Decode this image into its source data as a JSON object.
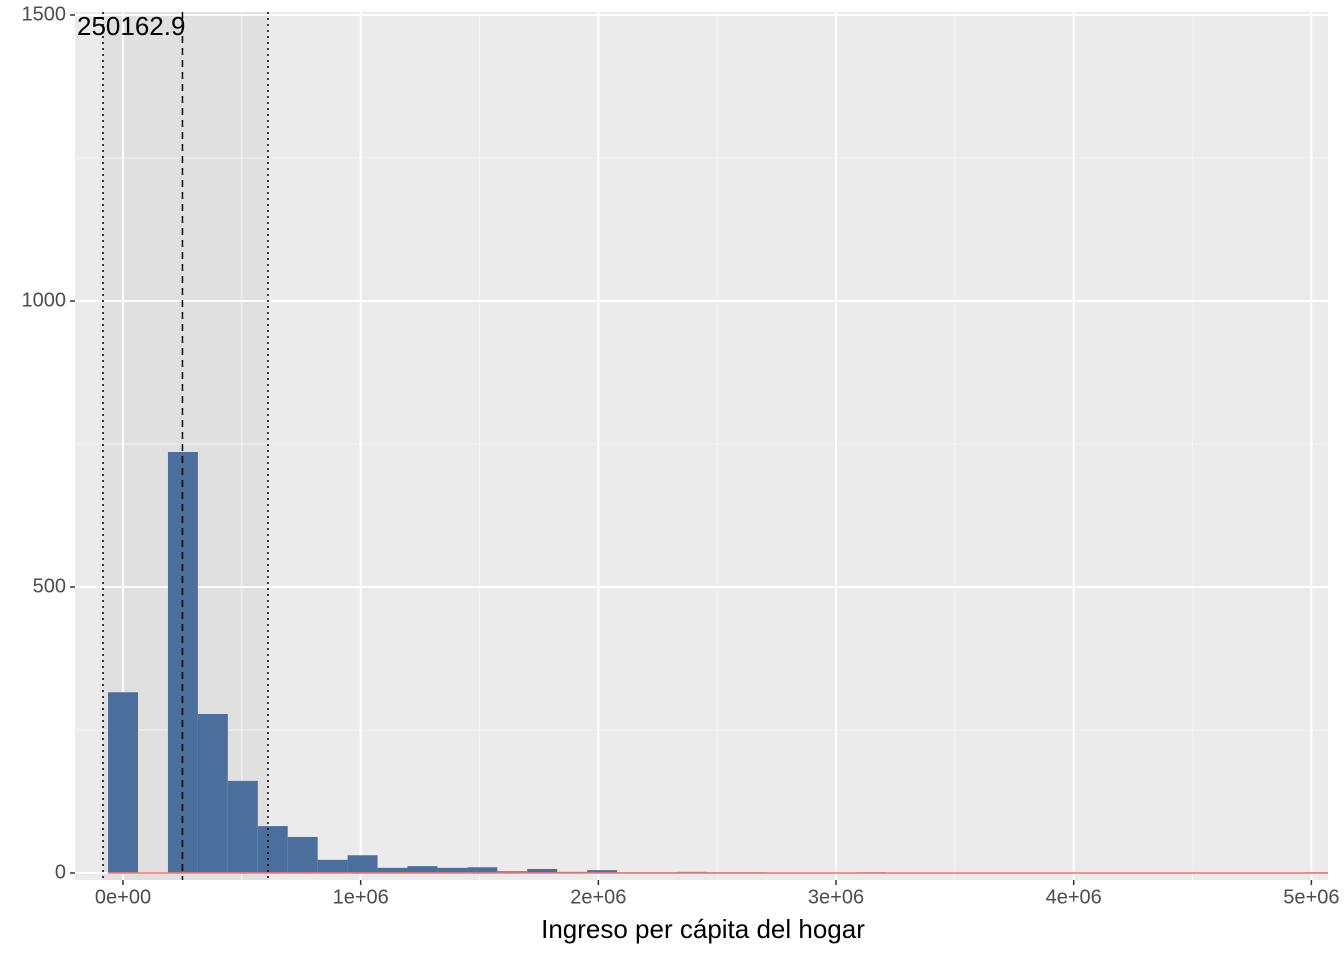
{
  "chart_data": {
    "type": "histogram",
    "xlabel": "Ingreso per cápita del hogar",
    "bins": [
      -63000,
      63000,
      189000,
      315000,
      441000,
      567000,
      693000,
      819000,
      945000,
      1071000,
      1197000,
      1323000,
      1449000,
      1575000,
      1701000,
      1827000,
      1953000,
      2079000,
      2205000,
      2331000,
      2457000,
      2583000,
      2709000,
      2835000,
      2961000,
      3087000,
      3213000,
      3339000,
      3465000,
      3591000,
      3717000,
      3843000,
      3969000,
      4095000,
      4221000,
      4347000,
      4473000,
      4599000,
      4725000,
      4851000,
      4977000,
      5103000
    ],
    "values": [
      316,
      0,
      736,
      278,
      161,
      82,
      63,
      23,
      31,
      9,
      12,
      9,
      10,
      3,
      7,
      2,
      5,
      1,
      1,
      2,
      1,
      1,
      0,
      0,
      0,
      1,
      0,
      0,
      0,
      0,
      0,
      0,
      0,
      0,
      0,
      0,
      0,
      0,
      0,
      0,
      1
    ],
    "color": "#4a6f9c",
    "xlim": [
      -202000,
      5070000
    ],
    "ylim": [
      0,
      1500
    ],
    "xticks": [
      {
        "value": 0,
        "label": "0e+00"
      },
      {
        "value": 1000000,
        "label": "1e+06"
      },
      {
        "value": 2000000,
        "label": "2e+06"
      },
      {
        "value": 3000000,
        "label": "3e+06"
      },
      {
        "value": 4000000,
        "label": "4e+06"
      },
      {
        "value": 5000000,
        "label": "5e+06"
      }
    ],
    "yticks": [
      0,
      500,
      1000,
      1500
    ],
    "grid": true,
    "mean_line": 250162.9,
    "mean_label": "250162.9",
    "band": [
      -84000,
      610000
    ]
  }
}
